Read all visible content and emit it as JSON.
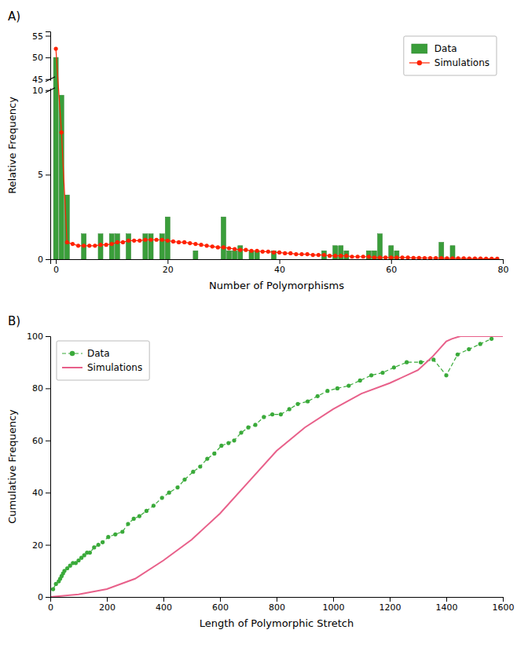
{
  "chart_data": [
    {
      "type": "bar",
      "title": "A)",
      "xlabel": "Number of Polymorphisms",
      "ylabel": "Relative Frequency",
      "x": [
        0,
        1,
        2,
        3,
        4,
        5,
        6,
        7,
        8,
        9,
        10,
        11,
        12,
        13,
        14,
        15,
        16,
        17,
        18,
        19,
        20,
        21,
        22,
        23,
        24,
        25,
        26,
        27,
        28,
        29,
        30,
        31,
        32,
        33,
        34,
        35,
        36,
        37,
        38,
        39,
        40,
        41,
        42,
        43,
        44,
        45,
        46,
        47,
        48,
        49,
        50,
        51,
        52,
        53,
        54,
        55,
        56,
        57,
        58,
        59,
        60,
        61,
        62,
        63,
        64,
        65,
        66,
        67,
        68,
        69,
        70,
        71,
        72,
        73,
        74,
        75,
        76,
        77,
        78,
        79
      ],
      "series": [
        {
          "name": "Data",
          "type": "bar",
          "color": "#3a9e3a",
          "values": [
            50.0,
            9.7,
            3.8,
            0.0,
            0.0,
            1.5,
            0.0,
            0.0,
            1.5,
            0.0,
            1.5,
            1.5,
            0.0,
            1.5,
            0.0,
            0.0,
            1.5,
            1.5,
            0.0,
            1.5,
            2.5,
            0.0,
            0.0,
            0.0,
            0.0,
            0.5,
            0.0,
            0.0,
            0.0,
            0.0,
            2.5,
            0.5,
            0.5,
            0.8,
            0.0,
            0.5,
            0.5,
            0.0,
            0.0,
            0.5,
            0.0,
            0.0,
            0.0,
            0.0,
            0.0,
            0.0,
            0.0,
            0.0,
            0.5,
            0.0,
            0.8,
            0.8,
            0.5,
            0.0,
            0.0,
            0.0,
            0.5,
            0.5,
            1.5,
            0.0,
            0.8,
            0.5,
            0.0,
            0.0,
            0.0,
            0.0,
            0.0,
            0.0,
            0.0,
            1.0,
            0.0,
            0.8,
            0.0,
            0.0,
            0.0,
            0.0,
            0.0,
            0.0,
            0.0,
            0.0
          ]
        },
        {
          "name": "Simulations",
          "type": "line",
          "color": "#ff2200",
          "marker": "circle",
          "line_style": "solid",
          "values": [
            52.0,
            7.5,
            1.0,
            0.9,
            0.8,
            0.8,
            0.8,
            0.8,
            0.85,
            0.85,
            0.9,
            1.0,
            1.0,
            1.1,
            1.1,
            1.1,
            1.15,
            1.15,
            1.15,
            1.15,
            1.1,
            1.05,
            1.0,
            1.0,
            0.95,
            0.9,
            0.85,
            0.8,
            0.75,
            0.7,
            0.7,
            0.65,
            0.6,
            0.55,
            0.55,
            0.5,
            0.5,
            0.45,
            0.45,
            0.4,
            0.4,
            0.35,
            0.35,
            0.3,
            0.3,
            0.3,
            0.25,
            0.25,
            0.25,
            0.2,
            0.2,
            0.2,
            0.2,
            0.15,
            0.15,
            0.15,
            0.15,
            0.1,
            0.1,
            0.1,
            0.1,
            0.1,
            0.1,
            0.1,
            0.08,
            0.08,
            0.07,
            0.07,
            0.07,
            0.06,
            0.05,
            0.05,
            0.05,
            0.05,
            0.04,
            0.04,
            0.04,
            0.03,
            0.03,
            0.03
          ]
        }
      ],
      "xlim": [
        -1,
        80
      ],
      "xticks": [
        0,
        20,
        40,
        60,
        80
      ],
      "ylim": [
        0,
        56
      ],
      "yticks": [
        0,
        5,
        10,
        45,
        50,
        55
      ],
      "legend": "upper right",
      "grid": false
    },
    {
      "type": "line",
      "title": "B)",
      "xlabel": "Length of Polymorphic Stretch",
      "ylabel": "Cumulative Frequency",
      "series": [
        {
          "name": "Data",
          "color": "#3aaa3a",
          "marker": "circle",
          "line_style": "dashed",
          "x": [
            10,
            20,
            30,
            35,
            40,
            45,
            50,
            60,
            70,
            80,
            90,
            100,
            110,
            120,
            130,
            140,
            155,
            170,
            185,
            205,
            230,
            255,
            275,
            295,
            315,
            340,
            365,
            395,
            420,
            450,
            475,
            505,
            530,
            555,
            580,
            605,
            630,
            650,
            675,
            700,
            725,
            755,
            785,
            815,
            845,
            875,
            910,
            945,
            980,
            1015,
            1055,
            1095,
            1135,
            1175,
            1215,
            1260,
            1310,
            1355,
            1400,
            1440,
            1480,
            1520,
            1560
          ],
          "values": [
            3,
            5,
            6,
            7,
            8,
            9,
            10,
            11,
            12,
            13,
            13,
            14,
            15,
            16,
            17,
            17,
            19,
            20,
            21,
            23,
            24,
            25,
            28,
            30,
            31,
            33,
            35,
            38,
            40,
            42,
            45,
            48,
            50,
            53,
            55,
            58,
            59,
            60,
            63,
            65,
            66,
            69,
            70,
            70,
            72,
            74,
            75,
            77,
            79,
            80,
            81,
            83,
            85,
            86,
            88,
            90,
            90,
            91,
            85,
            93,
            95,
            97,
            99
          ]
        },
        {
          "name": "Simulations",
          "color": "#e8608a",
          "line_style": "solid",
          "x": [
            0,
            100,
            200,
            300,
            400,
            500,
            600,
            700,
            800,
            900,
            1000,
            1100,
            1200,
            1300,
            1350,
            1400,
            1420,
            1450,
            1500,
            1550,
            1600
          ],
          "values": [
            0,
            1,
            3,
            7,
            14,
            22,
            32,
            44,
            56,
            65,
            72,
            78,
            82,
            87,
            92,
            98,
            99,
            100,
            100,
            100,
            100
          ]
        }
      ],
      "xlim": [
        0,
        1600
      ],
      "xticks": [
        0,
        200,
        400,
        600,
        800,
        1000,
        1200,
        1400,
        1600
      ],
      "ylim": [
        0,
        100
      ],
      "yticks": [
        0,
        20,
        40,
        60,
        80,
        100
      ],
      "legend": "upper left",
      "grid": false
    }
  ]
}
